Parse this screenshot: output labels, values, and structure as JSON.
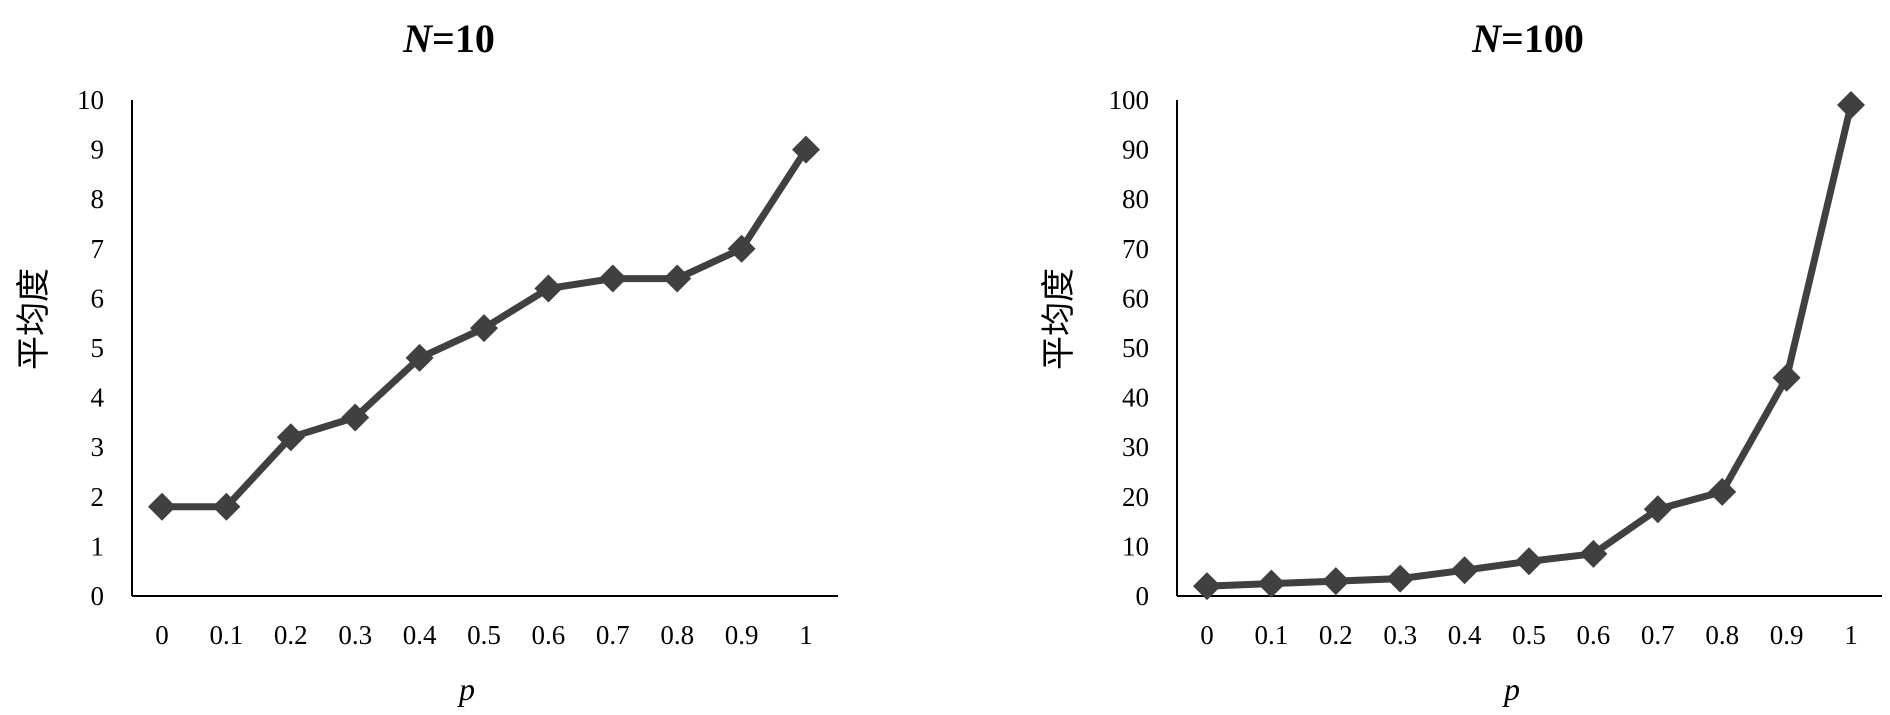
{
  "chart_data": [
    {
      "type": "line",
      "title": {
        "prefix": "N",
        "suffix": "=10"
      },
      "xlabel": "p",
      "ylabel": "平均度",
      "categories": [
        "0",
        "0.1",
        "0.2",
        "0.3",
        "0.4",
        "0.5",
        "0.6",
        "0.7",
        "0.8",
        "0.9",
        "1"
      ],
      "yticks": [
        "0",
        "1",
        "2",
        "3",
        "4",
        "5",
        "6",
        "7",
        "8",
        "9",
        "10"
      ],
      "ylim": [
        0,
        10
      ],
      "grid": false,
      "marker": "diamond",
      "series": [
        {
          "values": [
            1.8,
            1.8,
            3.2,
            3.6,
            4.8,
            5.4,
            6.2,
            6.4,
            6.4,
            7.0,
            9.0
          ]
        }
      ]
    },
    {
      "type": "line",
      "title": {
        "prefix": "N",
        "suffix": "=100"
      },
      "xlabel": "p",
      "ylabel": "平均度",
      "categories": [
        "0",
        "0.1",
        "0.2",
        "0.3",
        "0.4",
        "0.5",
        "0.6",
        "0.7",
        "0.8",
        "0.9",
        "1"
      ],
      "yticks": [
        "0",
        "10",
        "20",
        "30",
        "40",
        "50",
        "60",
        "70",
        "80",
        "90",
        "100"
      ],
      "ylim": [
        0,
        100
      ],
      "grid": false,
      "marker": "diamond",
      "series": [
        {
          "values": [
            2,
            2.5,
            3,
            3.5,
            5.2,
            7,
            8.5,
            17.5,
            21,
            44,
            99
          ]
        }
      ]
    }
  ],
  "colors": {
    "series": "#404040",
    "axis": "#000000",
    "text": "#000000",
    "background": "#ffffff"
  }
}
